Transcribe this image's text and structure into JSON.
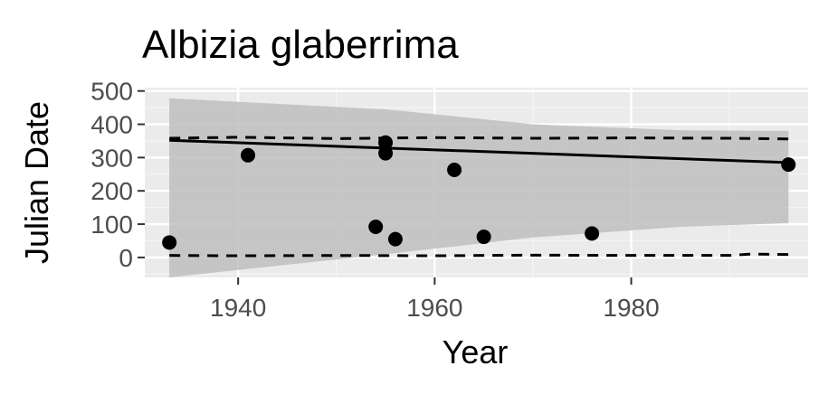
{
  "chart_data": {
    "type": "scatter",
    "title": "Albizia glaberrima",
    "xlabel": "Year",
    "ylabel": "Julian Date",
    "xlim": [
      1930.5,
      1998
    ],
    "ylim": [
      -60,
      510
    ],
    "x_ticks": [
      1940,
      1960,
      1980
    ],
    "y_ticks": [
      0,
      100,
      200,
      300,
      400,
      500
    ],
    "grid": true,
    "legend": "none",
    "points": [
      {
        "x": 1933,
        "y": 45
      },
      {
        "x": 1941,
        "y": 307
      },
      {
        "x": 1954,
        "y": 92
      },
      {
        "x": 1955,
        "y": 345
      },
      {
        "x": 1955,
        "y": 313
      },
      {
        "x": 1956,
        "y": 55
      },
      {
        "x": 1962,
        "y": 263
      },
      {
        "x": 1965,
        "y": 62
      },
      {
        "x": 1976,
        "y": 72
      },
      {
        "x": 1996,
        "y": 279
      }
    ],
    "trend_line": [
      {
        "x": 1933,
        "y": 352
      },
      {
        "x": 1996,
        "y": 285
      }
    ],
    "confidence_band_upper": [
      {
        "x": 1933,
        "y": 478
      },
      {
        "x": 1955,
        "y": 445
      },
      {
        "x": 1970,
        "y": 400
      },
      {
        "x": 1985,
        "y": 382
      },
      {
        "x": 1996,
        "y": 380
      }
    ],
    "confidence_band_lower": [
      {
        "x": 1933,
        "y": -60
      },
      {
        "x": 1955,
        "y": 10
      },
      {
        "x": 1970,
        "y": 60
      },
      {
        "x": 1985,
        "y": 92
      },
      {
        "x": 1996,
        "y": 103
      }
    ],
    "upper_dashed_line": [
      {
        "x": 1933,
        "y": 358
      },
      {
        "x": 1940,
        "y": 361
      },
      {
        "x": 1950,
        "y": 357
      },
      {
        "x": 1960,
        "y": 360
      },
      {
        "x": 1970,
        "y": 358
      },
      {
        "x": 1980,
        "y": 359
      },
      {
        "x": 1990,
        "y": 358
      },
      {
        "x": 1996,
        "y": 356
      }
    ],
    "lower_dashed_line": [
      {
        "x": 1933,
        "y": 6
      },
      {
        "x": 1940,
        "y": 5
      },
      {
        "x": 1950,
        "y": 6
      },
      {
        "x": 1960,
        "y": 5
      },
      {
        "x": 1970,
        "y": 7
      },
      {
        "x": 1980,
        "y": 6
      },
      {
        "x": 1990,
        "y": 6
      },
      {
        "x": 1992,
        "y": 10
      },
      {
        "x": 1996,
        "y": 9
      }
    ],
    "colors": {
      "panel_background": "#ebebeb",
      "grid_major": "#ffffff",
      "grid_minor": "#f5f5f5",
      "band": "#bebebe",
      "points": "#000000",
      "lines": "#000000",
      "tick_label": "#4d4d4d",
      "tick_mark": "#333333"
    }
  }
}
